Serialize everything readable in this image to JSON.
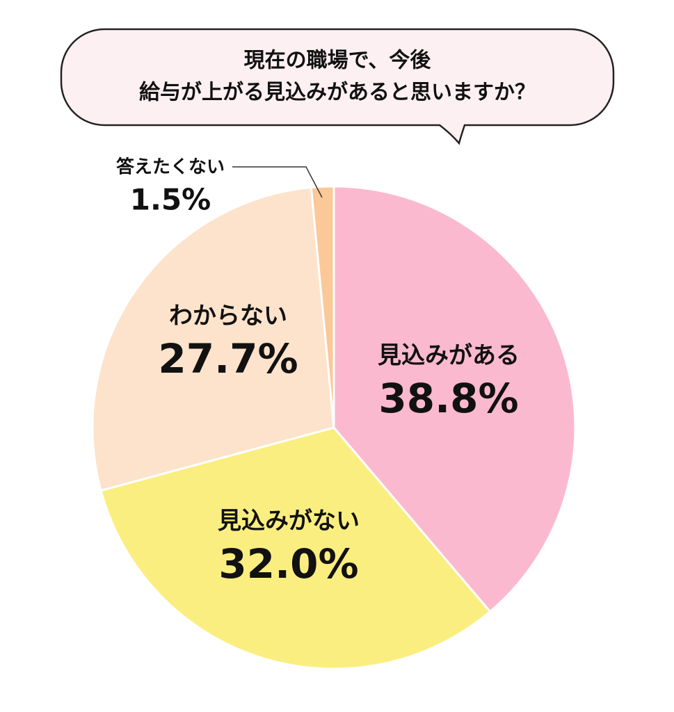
{
  "chart_data": {
    "type": "pie",
    "title": [
      "現在の職場で、今後",
      "給与が上がる見込みがあると思いますか？"
    ],
    "categories": [
      "見込みがある",
      "見込みがない",
      "わからない",
      "答えたくない"
    ],
    "values": [
      38.8,
      32.0,
      27.7,
      1.5
    ],
    "value_labels": [
      "38.8%",
      "32.0%",
      "27.7%",
      "1.5%"
    ],
    "colors": [
      "#fbb9cf",
      "#fbee80",
      "#fde3cb",
      "#fbc898"
    ]
  }
}
